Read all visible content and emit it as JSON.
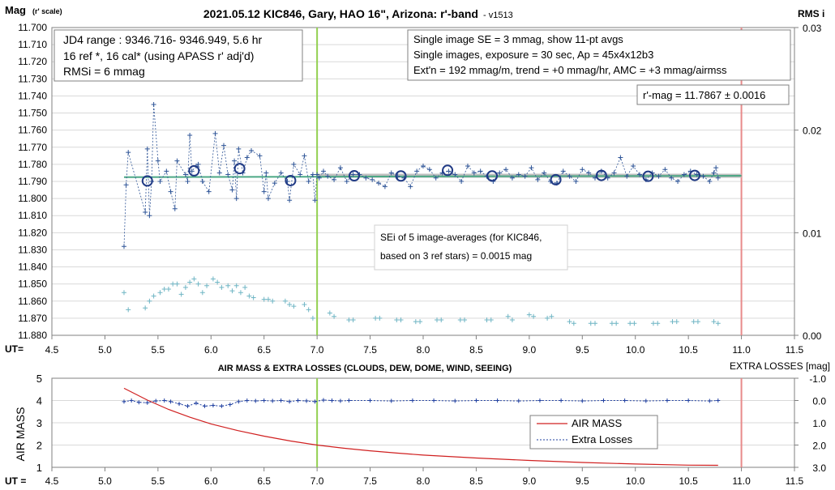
{
  "chart_data": [
    {
      "type": "scatter",
      "title": "2021.05.12 KIC846, Gary, HAO 16\", Arizona: r'-band",
      "version": "- v1513",
      "ylabel_main": "Mag",
      "ylabel_sub": "(r' scale)",
      "ylabel_right": "RMS i",
      "xlabel": "UT=",
      "xlim": [
        4.5,
        11.5
      ],
      "x_ticks": [
        "4.5",
        "5.0",
        "5.5",
        "6.0",
        "6.5",
        "7.0",
        "7.5",
        "8.0",
        "8.5",
        "9.0",
        "9.5",
        "10.0",
        "10.5",
        "11.0",
        "11.5"
      ],
      "ylim": [
        11.88,
        11.7
      ],
      "y_ticks": [
        "11.700",
        "11.710",
        "11.720",
        "11.730",
        "11.740",
        "11.750",
        "11.760",
        "11.770",
        "11.780",
        "11.790",
        "11.800",
        "11.810",
        "11.820",
        "11.830",
        "11.840",
        "11.850",
        "11.860",
        "11.870",
        "11.880"
      ],
      "y2lim": [
        0.0,
        0.03
      ],
      "y2_ticks": [
        "0.03",
        "0.02",
        "0.01",
        "0.00"
      ],
      "vertical_lines": [
        {
          "x": 7.0,
          "color": "#92D050"
        },
        {
          "x": 11.0,
          "color": "#E88A8A"
        }
      ],
      "trend_line": {
        "x": [
          5.18,
          11.0
        ],
        "y": [
          11.7875,
          11.7867
        ],
        "color": "#4CA885"
      },
      "gray_bar": {
        "x": [
          7.0,
          11.0
        ],
        "y": 11.7867
      },
      "series": [
        {
          "name": "",
          "style": "dotted line with plus markers",
          "color": "#2F5597",
          "x": [
            5.18,
            5.2,
            5.22,
            5.38,
            5.4,
            5.42,
            5.44,
            5.46,
            5.5,
            5.52,
            5.58,
            5.62,
            5.66,
            5.68,
            5.76,
            5.78,
            5.8,
            5.82,
            5.86,
            5.88,
            5.92,
            5.98,
            6.04,
            6.08,
            6.12,
            6.16,
            6.2,
            6.22,
            6.24,
            6.26,
            6.3,
            6.34,
            6.38,
            6.46,
            6.5,
            6.52,
            6.54,
            6.6,
            6.66,
            6.72,
            6.74,
            6.78,
            6.84,
            6.88,
            6.92,
            6.96,
            6.98,
            7.0,
            7.02,
            7.06,
            7.1,
            7.16,
            7.22,
            7.28,
            7.34,
            7.4,
            7.46,
            7.52,
            7.58,
            7.64,
            7.7,
            7.76,
            7.82,
            7.88,
            7.94,
            8.0,
            8.06,
            8.12,
            8.18,
            8.24,
            8.3,
            8.36,
            8.42,
            8.48,
            8.54,
            8.6,
            8.66,
            8.72,
            8.78,
            8.84,
            8.9,
            8.96,
            9.02,
            9.08,
            9.14,
            9.2,
            9.26,
            9.32,
            9.38,
            9.44,
            9.5,
            9.56,
            9.62,
            9.68,
            9.74,
            9.8,
            9.86,
            9.92,
            9.98,
            10.04,
            10.1,
            10.16,
            10.22,
            10.28,
            10.34,
            10.4,
            10.46,
            10.52,
            10.58,
            10.64,
            10.7,
            10.74,
            10.76,
            10.78
          ],
          "y": [
            11.828,
            11.792,
            11.773,
            11.808,
            11.771,
            11.81,
            11.79,
            11.745,
            11.778,
            11.79,
            11.784,
            11.796,
            11.806,
            11.778,
            11.786,
            11.79,
            11.763,
            11.784,
            11.781,
            11.78,
            11.79,
            11.796,
            11.762,
            11.785,
            11.769,
            11.786,
            11.795,
            11.778,
            11.8,
            11.771,
            11.785,
            11.776,
            11.772,
            11.775,
            11.796,
            11.785,
            11.8,
            11.791,
            11.785,
            11.79,
            11.801,
            11.78,
            11.786,
            11.775,
            11.79,
            11.786,
            11.801,
            11.786,
            11.788,
            11.784,
            11.787,
            11.789,
            11.782,
            11.79,
            11.786,
            11.786,
            11.788,
            11.789,
            11.791,
            11.793,
            11.785,
            11.787,
            11.788,
            11.793,
            11.784,
            11.781,
            11.783,
            11.788,
            11.785,
            11.784,
            11.786,
            11.79,
            11.781,
            11.785,
            11.784,
            11.787,
            11.79,
            11.785,
            11.783,
            11.788,
            11.786,
            11.787,
            11.782,
            11.789,
            11.785,
            11.79,
            11.791,
            11.784,
            11.787,
            11.79,
            11.783,
            11.785,
            11.788,
            11.784,
            11.788,
            11.785,
            11.776,
            11.787,
            11.781,
            11.786,
            11.789,
            11.785,
            11.787,
            11.783,
            11.788,
            11.79,
            11.786,
            11.784,
            11.786,
            11.787,
            11.79,
            11.785,
            11.782,
            11.788
          ]
        },
        {
          "name": "11-pt avgs",
          "style": "open circles",
          "color": "#203A85",
          "x": [
            5.4,
            5.84,
            6.27,
            6.75,
            7.35,
            7.79,
            8.23,
            8.65,
            9.25,
            9.68,
            10.12,
            10.56
          ],
          "y": [
            11.7897,
            11.7838,
            11.7825,
            11.7895,
            11.7867,
            11.7868,
            11.7835,
            11.7868,
            11.789,
            11.7865,
            11.787,
            11.7865
          ]
        },
        {
          "name": "",
          "style": "plus markers",
          "color": "#6FB5C4",
          "x": [
            5.18,
            5.22,
            5.38,
            5.42,
            5.46,
            5.52,
            5.56,
            5.6,
            5.64,
            5.68,
            5.72,
            5.76,
            5.8,
            5.84,
            5.88,
            5.92,
            5.96,
            6.02,
            6.06,
            6.1,
            6.16,
            6.2,
            6.24,
            6.28,
            6.32,
            6.36,
            6.4,
            6.5,
            6.54,
            6.58,
            6.7,
            6.74,
            6.78,
            6.88,
            6.92,
            6.96,
            7.12,
            7.16,
            7.3,
            7.34,
            7.55,
            7.59,
            7.75,
            7.79,
            7.93,
            7.97,
            8.13,
            8.17,
            8.35,
            8.39,
            8.6,
            8.64,
            8.8,
            8.84,
            9.0,
            9.04,
            9.17,
            9.21,
            9.38,
            9.42,
            9.58,
            9.62,
            9.78,
            9.82,
            9.95,
            9.99,
            10.17,
            10.21,
            10.35,
            10.39,
            10.55,
            10.59,
            10.74,
            10.78
          ],
          "y": [
            11.855,
            11.865,
            11.864,
            11.86,
            11.857,
            11.855,
            11.853,
            11.853,
            11.85,
            11.85,
            11.856,
            11.852,
            11.849,
            11.847,
            11.85,
            11.855,
            11.851,
            11.847,
            11.849,
            11.852,
            11.851,
            11.854,
            11.851,
            11.855,
            11.852,
            11.857,
            11.858,
            11.859,
            11.859,
            11.86,
            11.86,
            11.862,
            11.863,
            11.862,
            11.865,
            11.87,
            11.867,
            11.869,
            11.871,
            11.871,
            11.87,
            11.87,
            11.871,
            11.871,
            11.872,
            11.872,
            11.871,
            11.871,
            11.871,
            11.871,
            11.871,
            11.871,
            11.869,
            11.871,
            11.868,
            11.869,
            11.87,
            11.869,
            11.872,
            11.873,
            11.873,
            11.873,
            11.873,
            11.873,
            11.873,
            11.873,
            11.873,
            11.873,
            11.872,
            11.872,
            11.872,
            11.872,
            11.872,
            11.873
          ]
        }
      ],
      "annotations": [
        {
          "lines": [
            "JD4 range : 9346.716- 9346.949,  5.6  hr",
            "16 ref *, 16 cal* (using APASS r' adj'd)",
            "RMSi = 6 mmag"
          ]
        },
        {
          "lines": [
            "Single image SE = 3 mmag, show  11-pt avgs",
            "Single images, exposure = 30 sec, Ap = 45x4x12b3",
            "Ext'n = 192 mmag/m, trend =  +0 mmag/hr, AMC = +3 mmag/airmss"
          ]
        },
        {
          "lines": [
            "r'-mag = 11.7867 ± 0.0016"
          ]
        },
        {
          "lines": [
            "SEi of 5 image-averages (for KIC846,",
            "based on 3 ref stars) = 0.0015 mag"
          ]
        }
      ]
    },
    {
      "type": "line",
      "title": "AIR MASS & EXTRA LOSSES (CLOUDS, DEW, DOME, WIND, SEEING)",
      "ylabel": "AIR MASS",
      "ylabel_right": "EXTRA LOSSES [mag]",
      "xlabel": "UT =",
      "xlim": [
        4.5,
        11.5
      ],
      "x_ticks": [
        "4.5",
        "5.0",
        "5.5",
        "6.0",
        "6.5",
        "7.0",
        "7.5",
        "8.0",
        "8.5",
        "9.0",
        "9.5",
        "10.0",
        "10.5",
        "11.0",
        "11.5"
      ],
      "ylim": [
        1,
        5
      ],
      "y_ticks": [
        "5",
        "4",
        "3",
        "2",
        "1"
      ],
      "y2lim": [
        -1.0,
        3.0
      ],
      "y2_ticks": [
        "-1.0",
        "0.0",
        "1.0",
        "2.0",
        "3.0"
      ],
      "vertical_lines": [
        {
          "x": 7.0,
          "color": "#92D050"
        },
        {
          "x": 11.0,
          "color": "#E88A8A"
        }
      ],
      "legend": {
        "placement": "center-right",
        "entries": [
          "AIR MASS",
          "Extra Losses"
        ]
      },
      "series": [
        {
          "name": "AIR MASS",
          "color": "#D02020",
          "axis": "left",
          "x": [
            5.18,
            5.4,
            5.6,
            5.8,
            6.0,
            6.25,
            6.5,
            6.75,
            7.0,
            7.25,
            7.5,
            7.75,
            8.0,
            8.5,
            9.0,
            9.5,
            10.0,
            10.5,
            10.78
          ],
          "y": [
            4.55,
            4.02,
            3.6,
            3.25,
            2.95,
            2.65,
            2.4,
            2.18,
            2.0,
            1.86,
            1.74,
            1.64,
            1.55,
            1.42,
            1.31,
            1.22,
            1.15,
            1.1,
            1.09
          ]
        },
        {
          "name": "Extra Losses",
          "color": "#1F3FA0",
          "axis": "right",
          "x": [
            5.18,
            5.25,
            5.32,
            5.4,
            5.48,
            5.56,
            5.62,
            5.7,
            5.78,
            5.86,
            5.94,
            6.02,
            6.1,
            6.18,
            6.26,
            6.34,
            6.42,
            6.5,
            6.58,
            6.66,
            6.74,
            6.82,
            6.9,
            6.98,
            7.06,
            7.14,
            7.22,
            7.3,
            7.5,
            7.7,
            7.9,
            8.1,
            8.3,
            8.5,
            8.7,
            8.9,
            9.1,
            9.3,
            9.5,
            9.7,
            9.9,
            10.1,
            10.3,
            10.5,
            10.7,
            10.78
          ],
          "y": [
            0.05,
            0.0,
            0.08,
            0.1,
            0.02,
            0.0,
            0.05,
            0.15,
            0.25,
            0.12,
            0.25,
            0.22,
            0.25,
            0.18,
            0.05,
            0.0,
            0.02,
            0.0,
            0.02,
            0.0,
            0.05,
            0.0,
            0.02,
            0.05,
            -0.02,
            0.0,
            0.02,
            0.0,
            0.0,
            0.02,
            0.0,
            0.0,
            0.02,
            0.0,
            0.0,
            0.02,
            0.0,
            0.0,
            0.02,
            0.0,
            0.0,
            0.02,
            0.0,
            0.0,
            0.02,
            0.0
          ]
        }
      ]
    }
  ]
}
